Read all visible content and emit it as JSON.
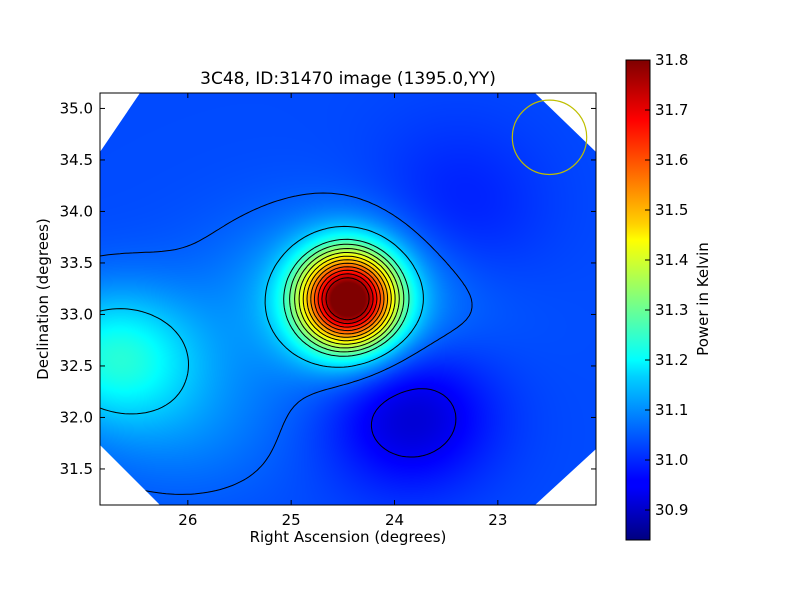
{
  "chart_data": {
    "type": "heatmap",
    "title": "3C48, ID:31470 image (1395.0,YY)",
    "xlabel": "Right Ascension (degrees)",
    "ylabel": "Declination (degrees)",
    "xlim": [
      26.85,
      22.05
    ],
    "ylim": [
      31.15,
      35.15
    ],
    "x_ticks": [
      26,
      25,
      24,
      23
    ],
    "y_ticks": [
      31.5,
      32.0,
      32.5,
      33.0,
      33.5,
      34.0,
      34.5,
      35.0
    ],
    "y_tick_labels": [
      "31.5",
      "32.0",
      "32.5",
      "33.0",
      "33.5",
      "34.0",
      "34.5",
      "35.0"
    ],
    "colorbar": {
      "label": "Power in Kelvin",
      "range": [
        30.84,
        31.8
      ],
      "ticks": [
        "30.9",
        "31.0",
        "31.1",
        "31.2",
        "31.3",
        "31.4",
        "31.5",
        "31.6",
        "31.7",
        "31.8"
      ]
    },
    "colormap": "jet",
    "contour_levels": [
      30.95,
      31.05,
      31.15,
      31.25,
      31.3,
      31.35,
      31.4,
      31.45,
      31.5,
      31.55,
      31.6,
      31.65,
      31.7,
      31.75
    ],
    "features": [
      {
        "type": "source",
        "ra": 24.45,
        "dec": 33.15,
        "peak": 31.78
      },
      {
        "type": "minimum",
        "ra": 23.85,
        "dec": 32.05,
        "value": 30.9
      },
      {
        "type": "plateau",
        "ra": 26.7,
        "dec": 32.6,
        "value": 31.22
      }
    ],
    "beam_circle": {
      "ra": 22.5,
      "dec": 34.72,
      "radius_deg": 0.36,
      "color": "#bfbf00"
    }
  }
}
